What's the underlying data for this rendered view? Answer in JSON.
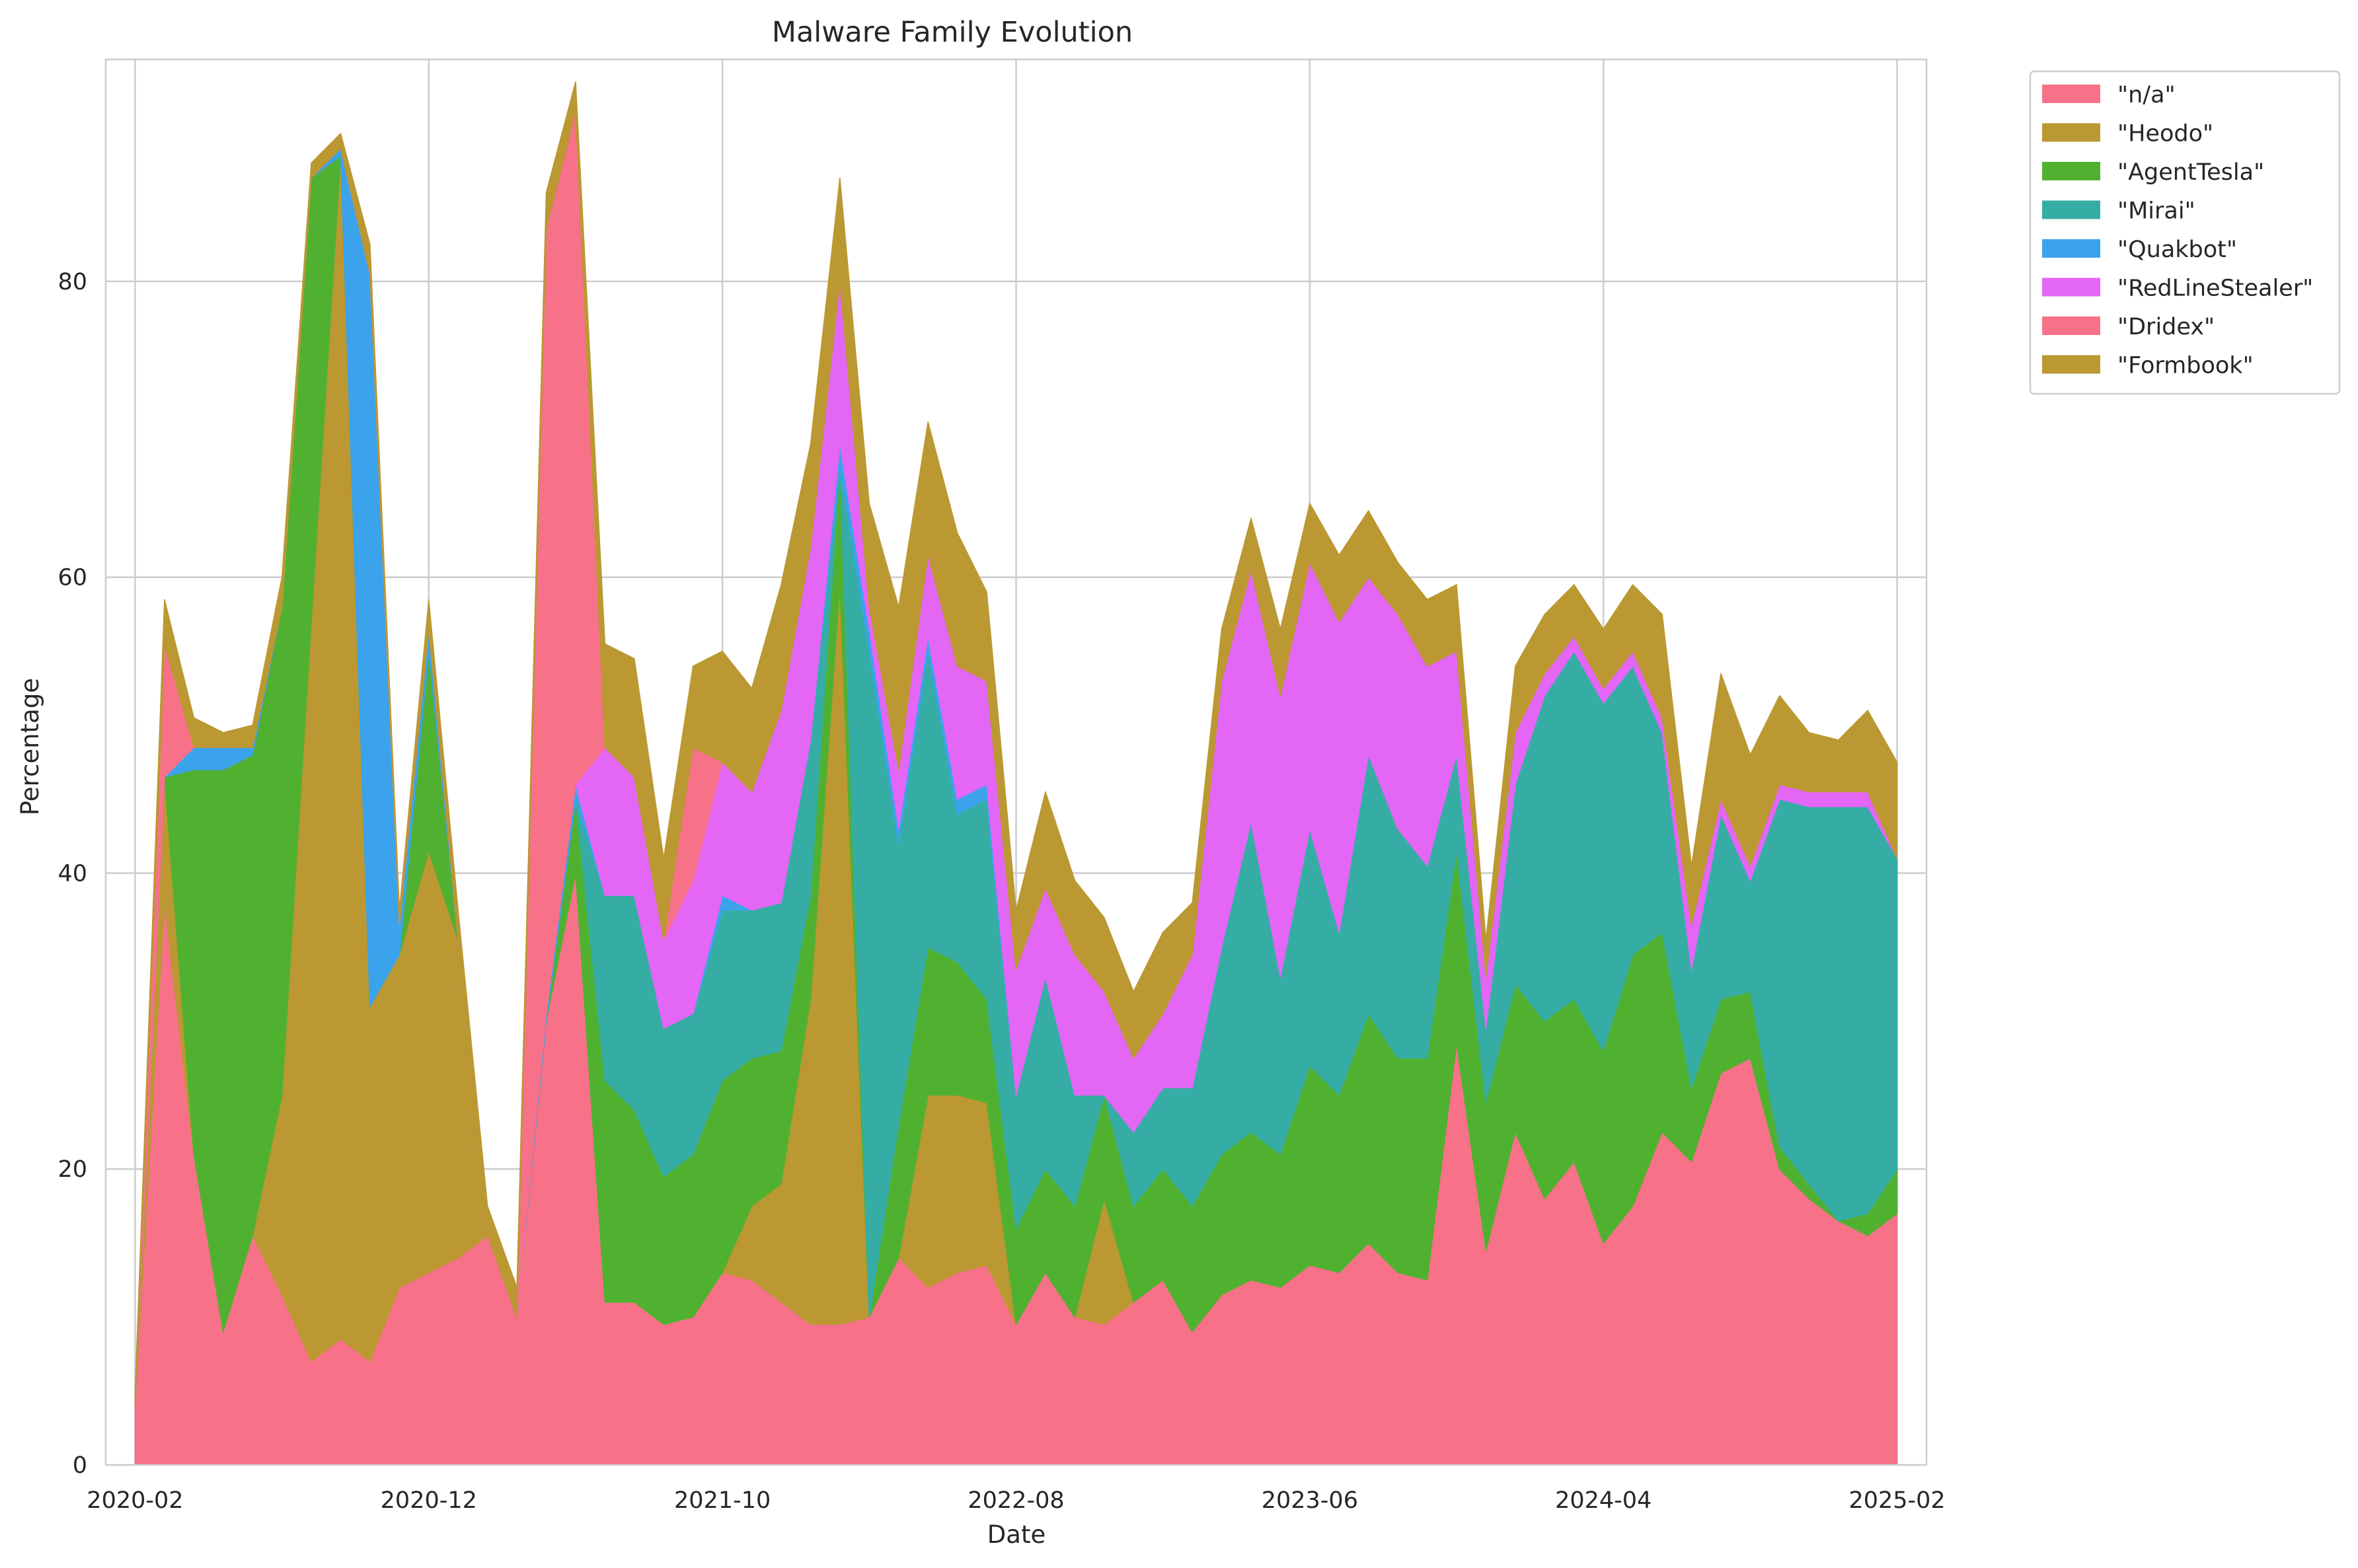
{
  "chart_data": {
    "type": "area",
    "title": "Malware Family Evolution",
    "xlabel": "Date",
    "ylabel": "Percentage",
    "ylim": [
      0,
      95
    ],
    "xlim": [
      "2020-01",
      "2025-03"
    ],
    "x_ticks": [
      "2020-02",
      "2020-12",
      "2021-10",
      "2022-08",
      "2023-06",
      "2024-04",
      "2025-02"
    ],
    "y_ticks": [
      "0",
      "20",
      "40",
      "60",
      "80"
    ],
    "grid": true,
    "legend_position": "outside-top-right",
    "x": [
      "2020-02",
      "2020-03",
      "2020-04",
      "2020-05",
      "2020-06",
      "2020-07",
      "2020-08",
      "2020-09",
      "2020-10",
      "2020-11",
      "2020-12",
      "2021-01",
      "2021-02",
      "2021-03",
      "2021-04",
      "2021-05",
      "2021-06",
      "2021-07",
      "2021-08",
      "2021-09",
      "2021-10",
      "2021-11",
      "2021-12",
      "2022-01",
      "2022-02",
      "2022-03",
      "2022-04",
      "2022-05",
      "2022-06",
      "2022-07",
      "2022-08",
      "2022-09",
      "2022-10",
      "2022-11",
      "2022-12",
      "2023-01",
      "2023-02",
      "2023-03",
      "2023-04",
      "2023-05",
      "2023-06",
      "2023-07",
      "2023-08",
      "2023-09",
      "2023-10",
      "2023-11",
      "2023-12",
      "2024-01",
      "2024-02",
      "2024-03",
      "2024-04",
      "2024-05",
      "2024-06",
      "2024-07",
      "2024-08",
      "2024-09",
      "2024-10",
      "2024-11",
      "2024-12",
      "2025-01",
      "2025-02"
    ],
    "series": [
      {
        "name": "\"n/a\"",
        "color": "#f77189",
        "values": [
          4,
          38,
          21,
          9,
          15.5,
          11.5,
          7,
          8.5,
          7,
          12,
          13,
          14,
          15.5,
          10,
          30,
          40,
          11,
          11,
          9.5,
          10,
          13,
          12.5,
          11,
          9.5,
          9.5,
          10,
          14,
          12,
          13,
          13.5,
          9.5,
          13,
          10,
          9.5,
          11,
          12.5,
          9,
          11.5,
          12.5,
          12,
          13.5,
          13,
          15,
          13,
          12.5,
          28.5,
          14.5,
          22.5,
          18,
          20.5,
          15,
          17.5,
          22.5,
          20.5,
          26.5,
          27.5,
          20,
          18,
          16.5,
          15.5,
          17
        ]
      },
      {
        "name": "\"Heodo\"",
        "color": "#bb9832",
        "values": [
          0,
          8.5,
          0,
          0,
          0,
          13.5,
          50,
          80,
          24,
          22.5,
          28.5,
          21.5,
          0,
          0,
          0,
          0,
          0,
          0,
          0,
          0,
          0,
          5,
          8,
          22,
          50,
          0,
          0,
          13,
          12,
          11,
          0,
          0,
          0,
          8.5,
          0,
          0,
          0,
          0,
          0,
          0,
          0,
          0,
          0,
          0,
          0,
          0,
          0,
          0,
          0,
          0,
          0,
          0,
          0,
          0,
          0,
          0,
          0,
          0,
          0,
          0,
          0
        ]
      },
      {
        "name": "\"AgentTesla\"",
        "color": "#50b131",
        "values": [
          0,
          0,
          26,
          38,
          32.5,
          33,
          30,
          0,
          0,
          0,
          13.5,
          0,
          0,
          0,
          0,
          5,
          15,
          13,
          10,
          11,
          13,
          10,
          9,
          7,
          8,
          0,
          9,
          10,
          9,
          7,
          6.5,
          7,
          7.5,
          7,
          6.5,
          7.5,
          8.5,
          9.5,
          10,
          9,
          13.5,
          12,
          15.5,
          14.5,
          15,
          13,
          10,
          10,
          12,
          11,
          13,
          17,
          13.5,
          5,
          5,
          4.5,
          1.5,
          1,
          0,
          1.5,
          3
        ]
      },
      {
        "name": "\"Mirai\"",
        "color": "#36ada4",
        "values": [
          0,
          0,
          0,
          0,
          0,
          0,
          0,
          0,
          0,
          0,
          0,
          0,
          0,
          0,
          0,
          0,
          12.5,
          14.5,
          10,
          9.5,
          11.5,
          10,
          10,
          10.5,
          0,
          45,
          19,
          20,
          10,
          13.5,
          9,
          13,
          7.5,
          0,
          5,
          5.5,
          8,
          14,
          21,
          12,
          16,
          11,
          17.5,
          15.5,
          13,
          6.5,
          5,
          13.5,
          22,
          23.5,
          23.5,
          19.5,
          13.5,
          8,
          12.5,
          7.5,
          23.5,
          25.5,
          28,
          27.5,
          21
        ]
      },
      {
        "name": "\"Quakbot\"",
        "color": "#3ba3ec",
        "values": [
          0,
          0,
          1.5,
          1.5,
          0.5,
          0,
          0,
          0.5,
          49.5,
          2,
          1.5,
          0,
          0,
          0,
          0.5,
          1,
          0,
          0,
          0,
          0,
          1,
          0,
          0,
          0,
          1.5,
          1.5,
          1,
          1,
          1,
          1,
          0,
          0,
          0,
          0,
          0,
          0,
          0,
          0,
          0,
          0,
          0,
          0,
          0,
          0,
          0,
          0,
          0,
          0,
          0,
          0,
          0,
          0,
          0,
          0,
          0,
          0,
          0,
          0,
          0,
          0,
          0
        ]
      },
      {
        "name": "\"RedLineStealer\"",
        "color": "#e366f5",
        "values": [
          0,
          0,
          0,
          0,
          0,
          0,
          0,
          0,
          0,
          0,
          0,
          0,
          0,
          0,
          0,
          0,
          10,
          8,
          6,
          9,
          9,
          8,
          13,
          13,
          11,
          1.5,
          4,
          5.5,
          9,
          7,
          8.5,
          6,
          9.5,
          7,
          5,
          5,
          9,
          18,
          17,
          19,
          18,
          21,
          12,
          14.5,
          13.5,
          7,
          3.5,
          3.5,
          1.5,
          1,
          1,
          1,
          1,
          3,
          1,
          1,
          1,
          1,
          1,
          1,
          0
        ]
      },
      {
        "name": "\"Dridex\"",
        "color": "#f77189",
        "values": [
          0,
          9,
          0,
          0,
          0,
          0,
          0,
          0,
          0,
          0,
          0,
          0,
          0,
          0,
          53,
          45.5,
          0,
          0,
          0,
          9,
          0,
          0,
          0,
          0,
          0,
          0,
          0,
          0,
          0,
          0,
          0,
          0,
          0,
          0,
          0,
          0,
          0,
          0,
          0,
          0,
          0,
          0,
          0,
          0,
          0,
          0,
          0,
          0,
          0,
          0,
          0,
          0,
          0,
          0,
          0,
          0,
          0,
          0,
          0,
          0,
          0
        ]
      },
      {
        "name": "\"Formbook\"",
        "color": "#bb9832",
        "values": [
          1,
          3,
          2,
          1,
          1.5,
          2,
          1,
          1,
          2,
          1,
          2,
          2,
          2,
          2,
          2.5,
          2,
          7,
          8,
          5.5,
          5.5,
          7.5,
          7,
          8.5,
          7,
          7,
          7,
          11,
          9,
          9,
          6,
          4,
          6.5,
          5,
          5,
          4.5,
          5.5,
          3.5,
          3.5,
          3.5,
          4.5,
          4,
          4.5,
          4.5,
          3.5,
          4.5,
          4.5,
          2.5,
          4.5,
          4,
          3.5,
          4,
          4.5,
          7,
          4,
          8.5,
          7.5,
          6,
          4,
          3.5,
          5.5,
          6.5
        ]
      }
    ]
  }
}
